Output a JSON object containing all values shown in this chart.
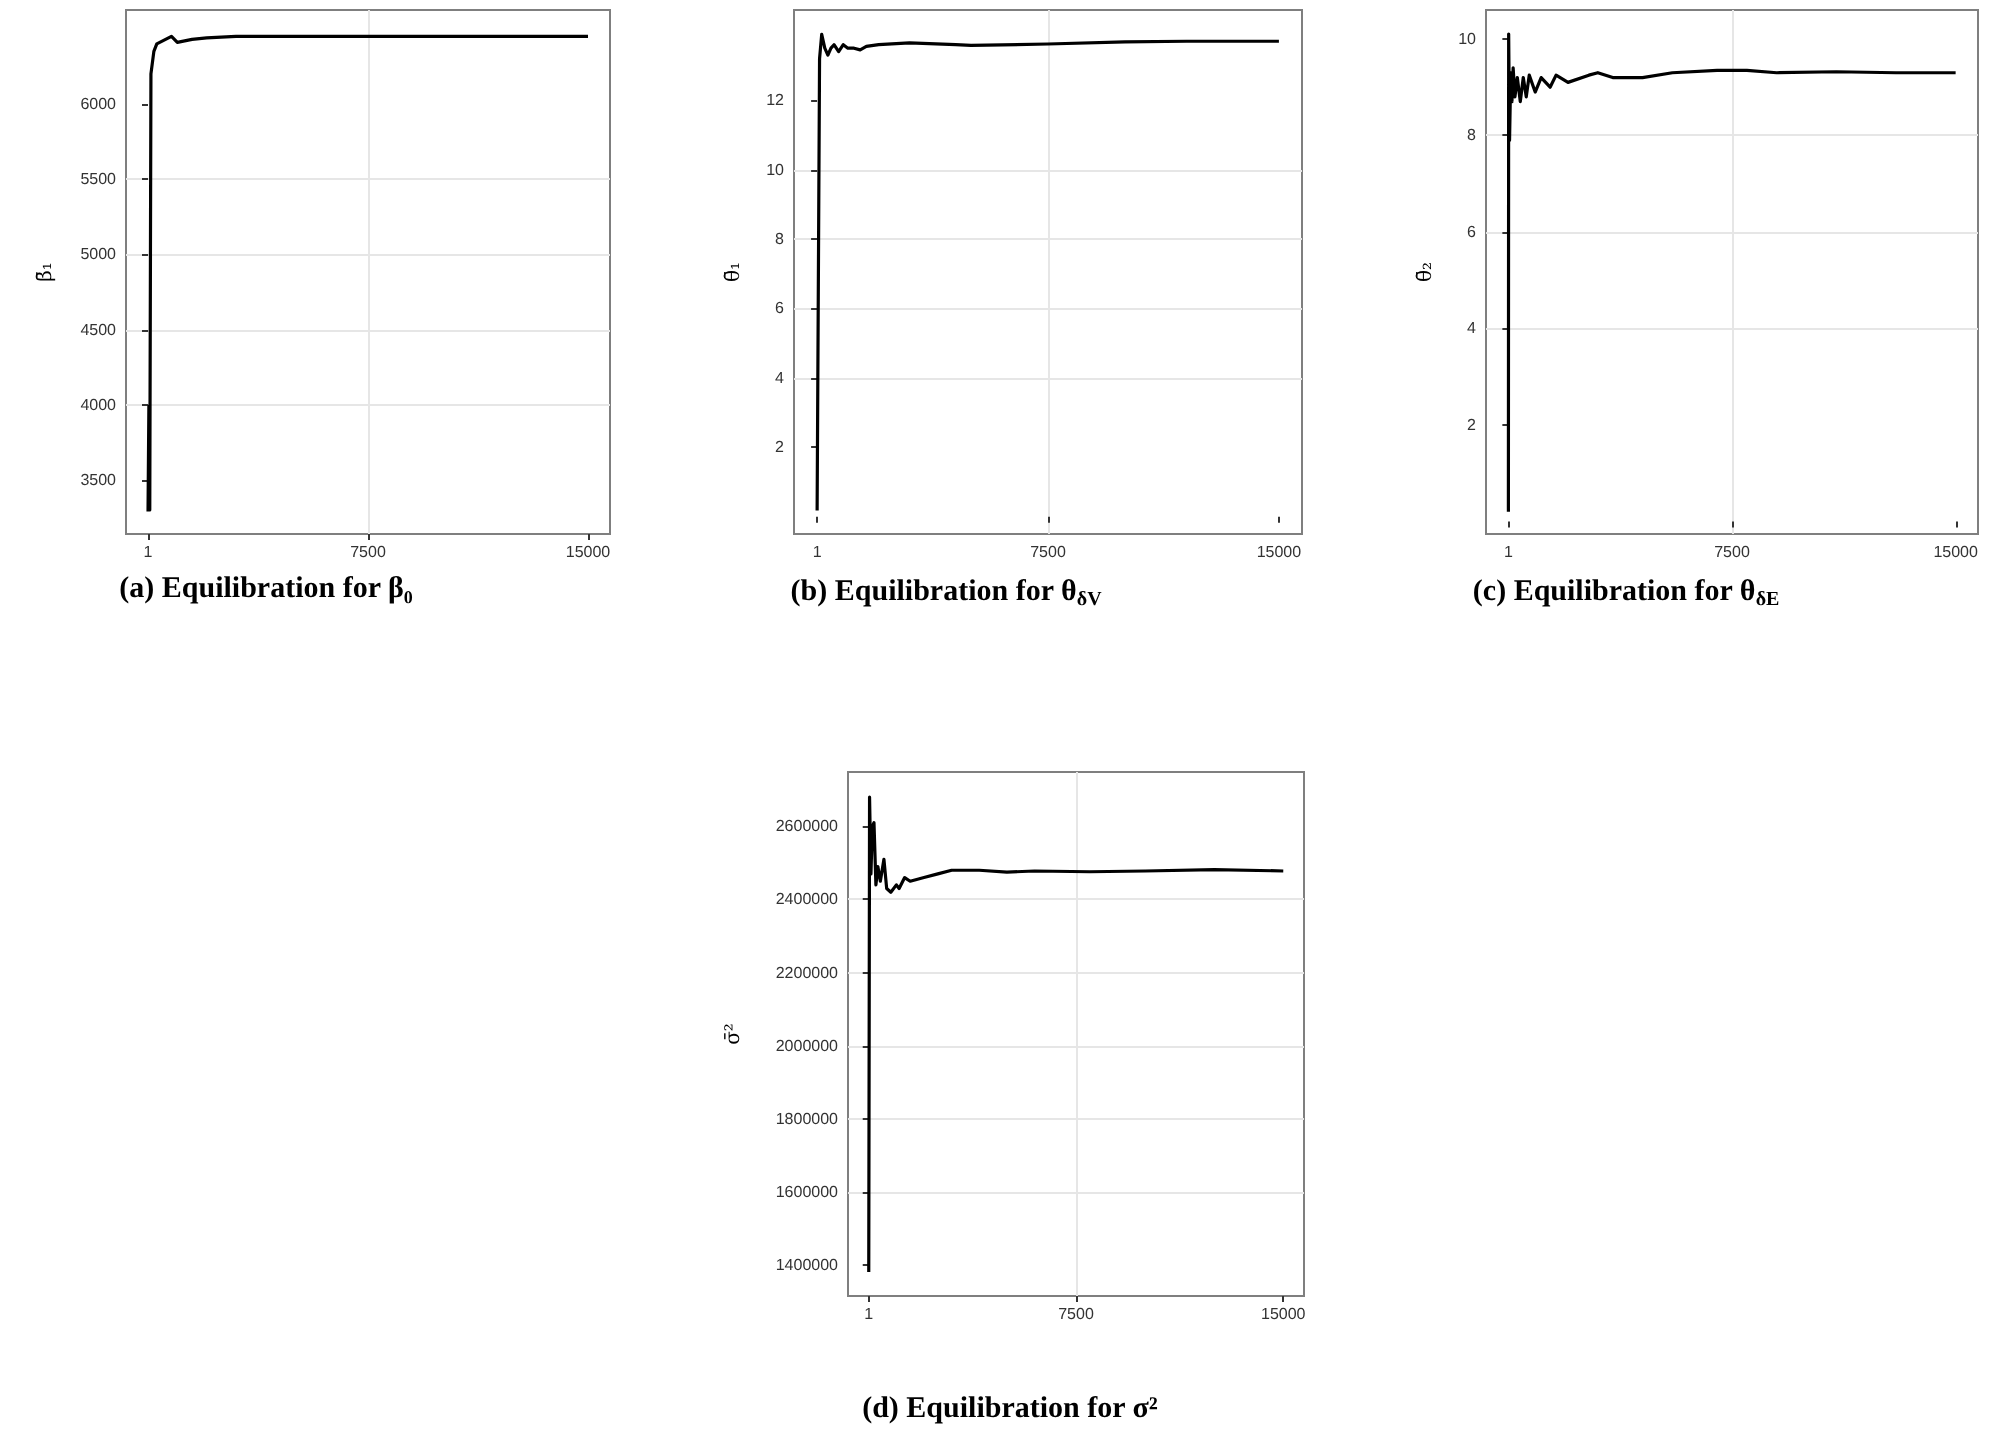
{
  "chart_data": [
    {
      "type": "line",
      "title": "(a) Equilibration for β₀",
      "ylabel": "β̄₁",
      "color": "#000000",
      "grid": true,
      "xlim": [
        -750,
        15750
      ],
      "xticks": [
        1,
        7500,
        15000
      ],
      "ylim": [
        3140,
        6625
      ],
      "yticks": [
        3500,
        4000,
        4500,
        5000,
        5500,
        6000
      ],
      "x": [
        1,
        30,
        60,
        100,
        200,
        300,
        500,
        800,
        1000,
        1500,
        2000,
        3000,
        5000,
        7500,
        10000,
        15000
      ],
      "values": [
        3290,
        3990,
        3300,
        6200,
        6350,
        6400,
        6420,
        6450,
        6410,
        6430,
        6440,
        6450,
        6450,
        6450,
        6450,
        6450
      ]
    },
    {
      "type": "line",
      "title": "(b) Equilibration for θ$_{δV}$",
      "ylabel": "θ̄₁",
      "color": "#000000",
      "grid": true,
      "xlim": [
        -750,
        15750
      ],
      "xticks": [
        1,
        7500,
        15000
      ],
      "ylim": [
        -0.5,
        14.6
      ],
      "yticks": [
        2,
        4,
        6,
        8,
        10,
        12
      ],
      "x": [
        1,
        80,
        150,
        250,
        350,
        450,
        550,
        700,
        850,
        1000,
        1200,
        1400,
        1600,
        2000,
        3000,
        4500,
        5000,
        7500,
        10000,
        12000,
        15000
      ],
      "values": [
        0.18,
        13.2,
        13.9,
        13.5,
        13.3,
        13.5,
        13.6,
        13.4,
        13.6,
        13.5,
        13.5,
        13.45,
        13.55,
        13.6,
        13.65,
        13.6,
        13.58,
        13.62,
        13.68,
        13.7,
        13.7
      ]
    },
    {
      "type": "line",
      "title": "(c) Equilibration for θ$_{δE}$",
      "ylabel": "θ̄₂",
      "color": "#000000",
      "grid": true,
      "xlim": [
        -750,
        15750
      ],
      "xticks": [
        1,
        7500,
        15000
      ],
      "ylim": [
        -0.26,
        10.6
      ],
      "yticks": [
        2,
        4,
        6,
        8,
        10
      ],
      "x": [
        1,
        10,
        40,
        80,
        120,
        160,
        220,
        300,
        400,
        500,
        600,
        700,
        900,
        1100,
        1400,
        1600,
        2000,
        2700,
        3000,
        3500,
        4500,
        5500,
        7000,
        8000,
        9000,
        11000,
        13000,
        15000
      ],
      "values": [
        0.2,
        10.1,
        7.9,
        9.3,
        8.7,
        9.4,
        8.8,
        9.2,
        8.7,
        9.2,
        8.8,
        9.25,
        8.9,
        9.2,
        9.0,
        9.25,
        9.1,
        9.25,
        9.3,
        9.2,
        9.2,
        9.3,
        9.35,
        9.35,
        9.3,
        9.32,
        9.3,
        9.3
      ]
    },
    {
      "type": "line",
      "title": "(d) Equilibration for σ²",
      "ylabel": "σ̄²",
      "color": "#000000",
      "grid": true,
      "xlim": [
        -750,
        15750
      ],
      "xticks": [
        1,
        7500,
        15000
      ],
      "ylim": [
        1314600,
        2749000
      ],
      "yticks": [
        1400000,
        1600000,
        1800000,
        2000000,
        2200000,
        2400000,
        2600000
      ],
      "x": [
        1,
        30,
        80,
        130,
        190,
        260,
        330,
        420,
        550,
        650,
        800,
        1000,
        1100,
        1300,
        1500,
        2000,
        2500,
        3000,
        4000,
        5000,
        6000,
        8000,
        10000,
        12500,
        15000
      ],
      "values": [
        1380000,
        2680000,
        2470000,
        2600000,
        2610000,
        2440000,
        2490000,
        2450000,
        2510000,
        2430000,
        2420000,
        2440000,
        2430000,
        2460000,
        2450000,
        2460000,
        2470000,
        2480000,
        2480000,
        2475000,
        2478000,
        2476000,
        2478000,
        2482000,
        2478000
      ]
    }
  ]
}
